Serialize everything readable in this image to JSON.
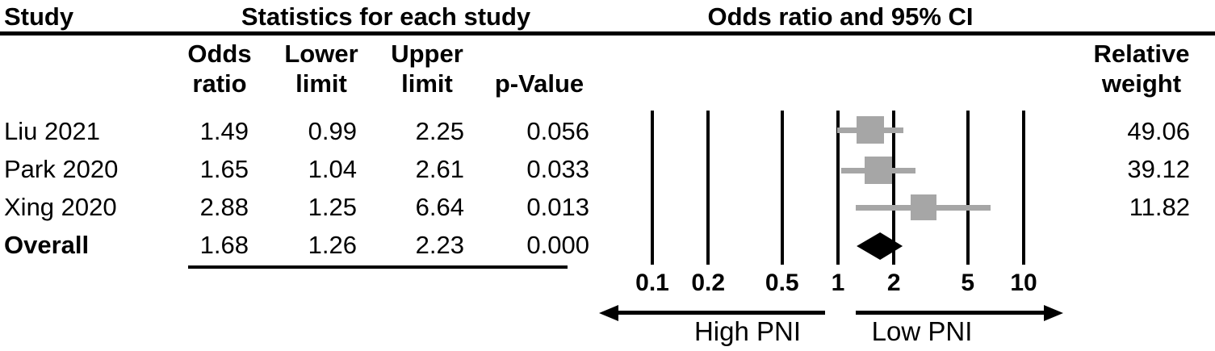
{
  "header": {
    "study_col": "Study",
    "stats_group": "Statistics for each study",
    "plot_group": "Odds ratio and 95% CI"
  },
  "subheader": {
    "odds": "Odds\nratio",
    "lower": "Lower\nlimit",
    "upper": "Upper\nlimit",
    "p_value": "p-Value",
    "weight": "Relative\nweight"
  },
  "rows": [
    {
      "study": "Liu 2021",
      "odds_ratio": "1.49",
      "lower_limit": "0.99",
      "upper_limit": "2.25",
      "p_value": "0.056",
      "relative_weight": "49.06"
    },
    {
      "study": "Park 2020",
      "odds_ratio": "1.65",
      "lower_limit": "1.04",
      "upper_limit": "2.61",
      "p_value": "0.033",
      "relative_weight": "39.12"
    },
    {
      "study": "Xing 2020",
      "odds_ratio": "2.88",
      "lower_limit": "1.25",
      "upper_limit": "6.64",
      "p_value": "0.013",
      "relative_weight": "11.82"
    },
    {
      "study": "Overall",
      "odds_ratio": "1.68",
      "lower_limit": "1.26",
      "upper_limit": "2.23",
      "p_value": "0.000",
      "relative_weight": ""
    }
  ],
  "axis": {
    "scale": "log",
    "tick_labels": [
      "0.1",
      "0.2",
      "0.5",
      "1",
      "2",
      "5",
      "10"
    ]
  },
  "direction_labels": {
    "left": "High PNI",
    "right": "Low PNI"
  },
  "colors": {
    "marker_gray": "#a6a6a6",
    "diamond_black": "#000000",
    "line_black": "#000000"
  },
  "chart_data": {
    "type": "forest",
    "effect_measure": "Odds ratio",
    "x_scale": "log",
    "x_ticks": [
      0.1,
      0.2,
      0.5,
      1,
      2,
      5,
      10
    ],
    "x_range": [
      0.1,
      10
    ],
    "studies": [
      {
        "name": "Liu 2021",
        "odds_ratio": 1.49,
        "ci_lower": 0.99,
        "ci_upper": 2.25,
        "p_value": 0.056,
        "relative_weight": 49.06
      },
      {
        "name": "Park 2020",
        "odds_ratio": 1.65,
        "ci_lower": 1.04,
        "ci_upper": 2.61,
        "p_value": 0.033,
        "relative_weight": 39.12
      },
      {
        "name": "Xing 2020",
        "odds_ratio": 2.88,
        "ci_lower": 1.25,
        "ci_upper": 6.64,
        "p_value": 0.013,
        "relative_weight": 11.82
      }
    ],
    "overall": {
      "name": "Overall",
      "odds_ratio": 1.68,
      "ci_lower": 1.26,
      "ci_upper": 2.23,
      "p_value": 0.0
    },
    "favors_left": "High PNI",
    "favors_right": "Low PNI"
  }
}
